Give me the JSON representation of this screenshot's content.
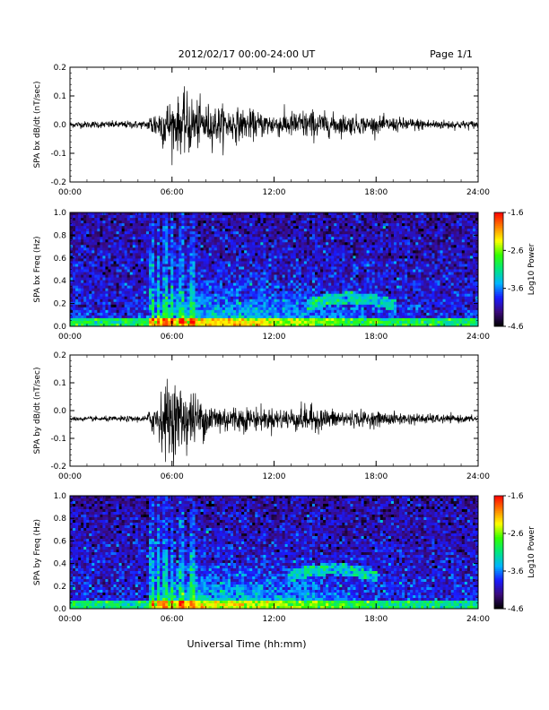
{
  "header": {
    "title": "2012/02/17  00:00-24:00 UT",
    "page": "Page 1/1"
  },
  "colors": {
    "background": "#ffffff",
    "trace": "#000000",
    "spectrogram_colormap": [
      "#000000",
      "#3a0a7a",
      "#1a1aff",
      "#00b4ff",
      "#00e680",
      "#33ff00",
      "#ffff00",
      "#ff8000",
      "#ff0000"
    ]
  },
  "xaxis": {
    "label": "Universal Time (hh:mm)",
    "ticks": [
      "00:00",
      "06:00",
      "12:00",
      "18:00",
      "24:00"
    ]
  },
  "colorbar": {
    "label": "Log10 Power",
    "ticks": [
      "-1.6",
      "-2.6",
      "-3.6",
      "-4.6"
    ]
  },
  "chart_data": [
    {
      "type": "line",
      "ylabel": "SPA bx dB/dt (nT/sec)",
      "yticks": [
        "0.2",
        "0.1",
        "0.0",
        "-0.1",
        "-0.2"
      ],
      "ylim": [
        -0.2,
        0.2
      ],
      "xlim": [
        0,
        24
      ],
      "baseline": 0.0,
      "envelope": {
        "hours": [
          0,
          4.5,
          4.8,
          5.2,
          5.6,
          6.0,
          6.5,
          7.0,
          7.5,
          8.0,
          9.0,
          10.0,
          11.0,
          12.0,
          13.0,
          14.0,
          15.0,
          16.0,
          18.0,
          20.0,
          22.0,
          24.0
        ],
        "amplitude": [
          0.012,
          0.015,
          0.05,
          0.06,
          0.1,
          0.09,
          0.1,
          0.12,
          0.09,
          0.08,
          0.07,
          0.06,
          0.05,
          0.045,
          0.05,
          0.06,
          0.045,
          0.04,
          0.03,
          0.025,
          0.018,
          0.015
        ]
      }
    },
    {
      "type": "heatmap",
      "ylabel": "SPA bx Freq (Hz)",
      "yticks": [
        "1.0",
        "0.8",
        "0.6",
        "0.4",
        "0.2",
        "0.0"
      ],
      "ylim": [
        0.0,
        1.0
      ],
      "xlim": [
        0,
        24
      ],
      "zlim": [
        -4.6,
        -1.6
      ],
      "zlabel": "Log10 Power",
      "features": {
        "background_power": -3.9,
        "low_freq_band_power": -2.4,
        "activity_start_hour": 4.8,
        "activity_peak_hour": 7.5,
        "arc_center_hour": 16.5,
        "arc_freq": 0.25
      }
    },
    {
      "type": "line",
      "ylabel": "SPA by dB/dt (nT/sec)",
      "yticks": [
        "0.2",
        "0.1",
        "0.0",
        "-0.1",
        "-0.2"
      ],
      "ylim": [
        -0.2,
        0.2
      ],
      "xlim": [
        0,
        24
      ],
      "baseline": -0.03,
      "envelope": {
        "hours": [
          0,
          4.5,
          4.8,
          5.2,
          5.6,
          6.0,
          6.5,
          7.0,
          7.5,
          8.0,
          9.0,
          10.0,
          11.0,
          12.0,
          13.0,
          14.0,
          15.0,
          16.0,
          18.0,
          20.0,
          22.0,
          24.0
        ],
        "amplitude": [
          0.008,
          0.012,
          0.06,
          0.08,
          0.14,
          0.15,
          0.13,
          0.12,
          0.09,
          0.07,
          0.06,
          0.05,
          0.045,
          0.04,
          0.045,
          0.055,
          0.04,
          0.035,
          0.028,
          0.022,
          0.016,
          0.012
        ]
      }
    },
    {
      "type": "heatmap",
      "ylabel": "SPA by Freq (Hz)",
      "yticks": [
        "1.0",
        "0.8",
        "0.6",
        "0.4",
        "0.2",
        "0.0"
      ],
      "ylim": [
        0.0,
        1.0
      ],
      "xlim": [
        0,
        24
      ],
      "zlim": [
        -4.6,
        -1.6
      ],
      "zlabel": "Log10 Power",
      "features": {
        "background_power": -3.9,
        "low_freq_band_power": -2.5,
        "activity_start_hour": 4.8,
        "activity_peak_hour": 7.5,
        "arc_center_hour": 15.5,
        "arc_freq": 0.35
      }
    }
  ]
}
